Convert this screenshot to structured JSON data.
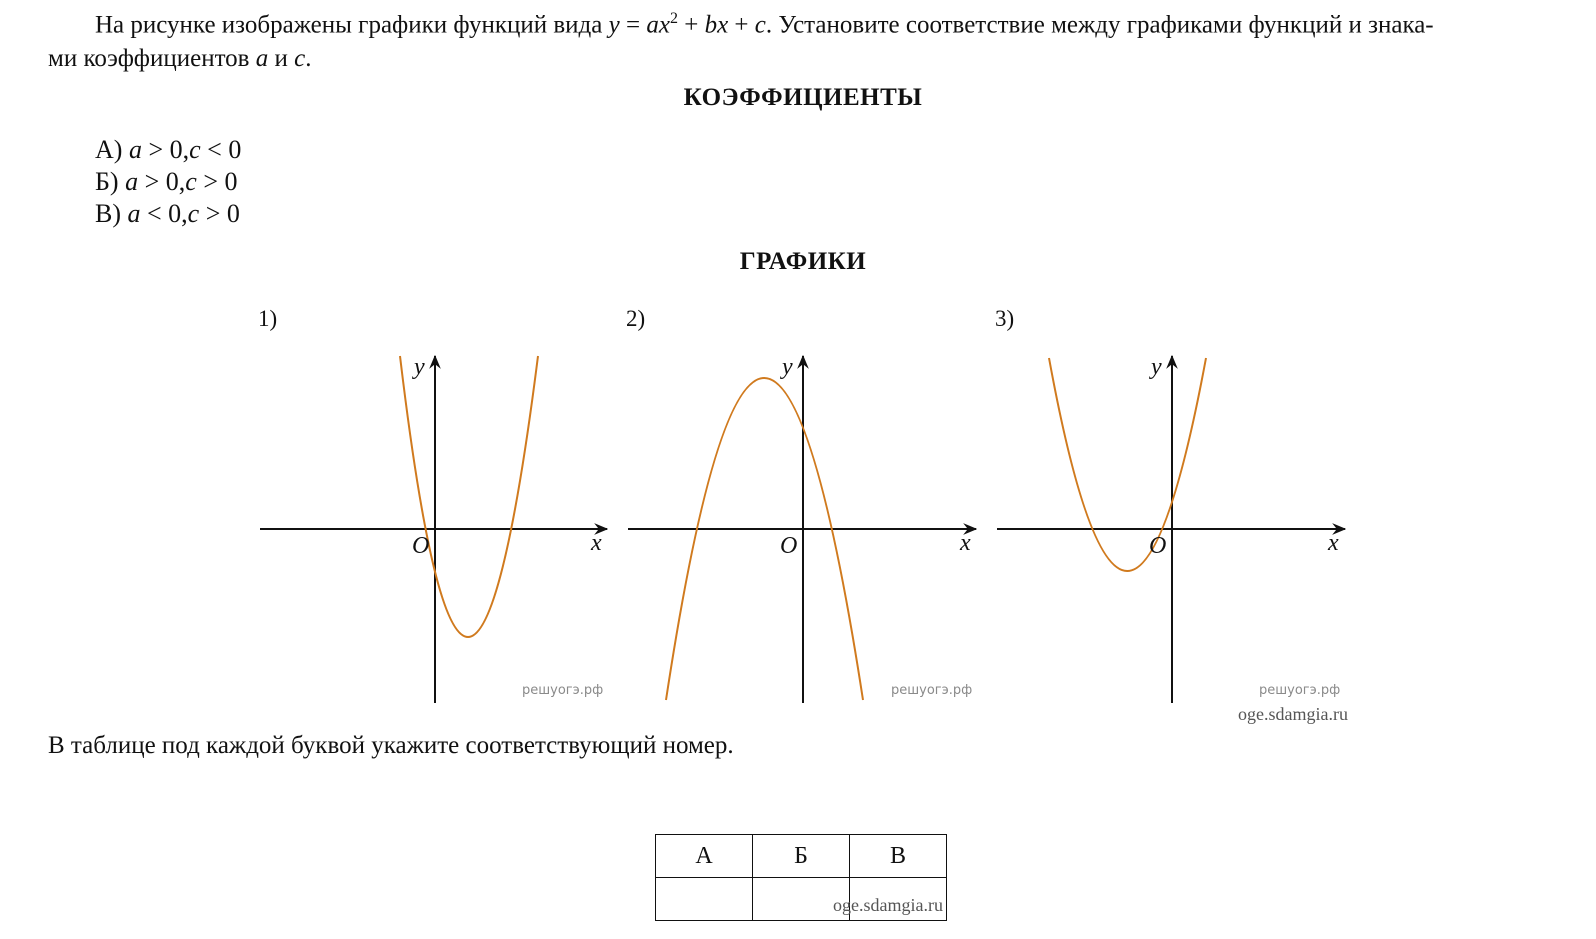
{
  "task": {
    "line1_prefix": "На рисунке изображены графики функций вида",
    "formula_y": "y",
    "formula_eq": " = ",
    "formula_a": "ax",
    "formula_sup": "2",
    "formula_rest1": " + ",
    "formula_b": "bx",
    "formula_rest2": " + ",
    "formula_c": "c",
    "line1_suffix": ". Установите соответствие между графиками функций и знака-",
    "line2_prefix": "ми коэффициентов ",
    "line2_a": "a",
    "line2_and": " и ",
    "line2_c": "c",
    "line2_end": "."
  },
  "coefficients": {
    "heading": "КОЭФФИЦИЕНТЫ",
    "options": [
      {
        "letter": "А)",
        "a": "a",
        "a_rel": " > 0,",
        "c": "c",
        "c_rel": " < 0"
      },
      {
        "letter": "Б)",
        "a": "a",
        "a_rel": " > 0,",
        "c": "c",
        "c_rel": " > 0"
      },
      {
        "letter": "В)",
        "a": "a",
        "a_rel": " < 0,",
        "c": "c",
        "c_rel": " > 0"
      }
    ]
  },
  "graphs": {
    "heading": "ГРАФИКИ",
    "items": [
      {
        "label": "1)",
        "axis_x": "x",
        "axis_y": "y",
        "origin": "O",
        "watermark": "решуогэ.рф"
      },
      {
        "label": "2)",
        "axis_x": "x",
        "axis_y": "y",
        "origin": "O",
        "watermark": "решуогэ.рф"
      },
      {
        "label": "3)",
        "axis_x": "x",
        "axis_y": "y",
        "origin": "O",
        "watermark": "решуогэ.рф"
      }
    ],
    "site_watermark": "oge.sdamgia.ru",
    "curve_color": "#d07a1e"
  },
  "instruction": "В таблице под каждой буквой укажите соответствующий номер.",
  "answer_table": {
    "headers": [
      "А",
      "Б",
      "В"
    ],
    "watermark": "oge.sdamgia.ru"
  }
}
